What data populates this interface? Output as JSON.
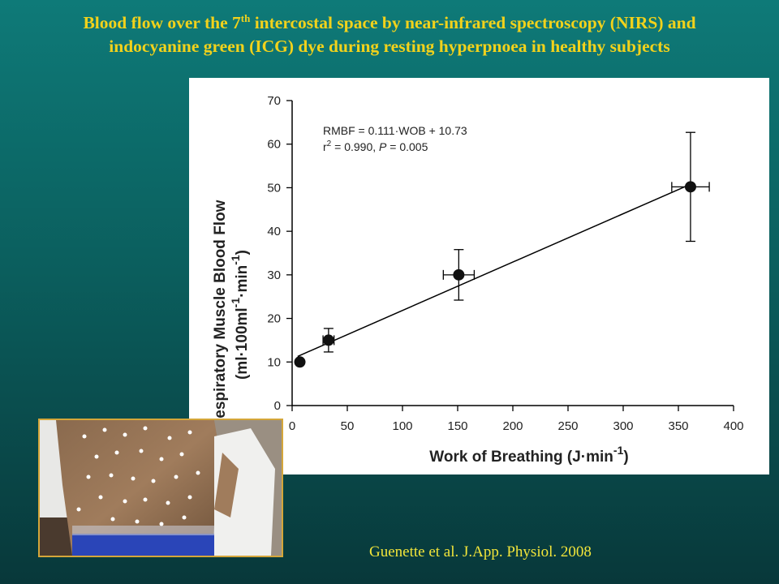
{
  "slide": {
    "title_line1_pre": "Blood flow over the 7",
    "title_line1_sup": "th",
    "title_line1_post": " intercostal space by near-infrared spectroscopy (NIRS) and",
    "title_line2": "indocyanine green (ICG) dye during resting hyperpnoea in healthy subjects",
    "citation": "Guenette et al. J.App. Physiol. 2008",
    "title_color": "#f2d21b",
    "citation_color": "#f2e53a"
  },
  "chart_data": {
    "type": "scatter",
    "xlabel_main": "Work of Breathing (J·min",
    "xlabel_sup": "-1",
    "xlabel_close": ")",
    "ylabel_line1": "Respiratory Muscle Blood Flow",
    "ylabel_line2_main": "(ml·100ml",
    "ylabel_line2_sup1": "-1",
    "ylabel_line2_mid": "·min",
    "ylabel_line2_sup2": "-1",
    "ylabel_line2_close": ")",
    "xlim": [
      0,
      400
    ],
    "ylim": [
      0,
      70
    ],
    "xticks": [
      0,
      50,
      100,
      150,
      200,
      250,
      300,
      350,
      400
    ],
    "yticks": [
      0,
      10,
      20,
      30,
      40,
      50,
      60,
      70
    ],
    "grid": false,
    "points": [
      {
        "x": 7,
        "y": 10,
        "xerr": 0,
        "yerr": 0
      },
      {
        "x": 33,
        "y": 15,
        "xerr": 5,
        "yerr": 2.7
      },
      {
        "x": 151,
        "y": 30,
        "xerr": 14,
        "yerr": 5.8
      },
      {
        "x": 361,
        "y": 50.2,
        "xerr": 17,
        "yerr": 12.5
      }
    ],
    "fit_line": {
      "slope": 0.111,
      "intercept": 10.73,
      "x_range": [
        5,
        361
      ]
    },
    "annotation_line1": "RMBF = 0.111·WOB + 10.73",
    "annotation_line2_r": "r",
    "annotation_line2_sup": "2",
    "annotation_line2_mid": " = 0.990, ",
    "annotation_line2_p": "P",
    "annotation_line2_end": " = 0.005"
  }
}
